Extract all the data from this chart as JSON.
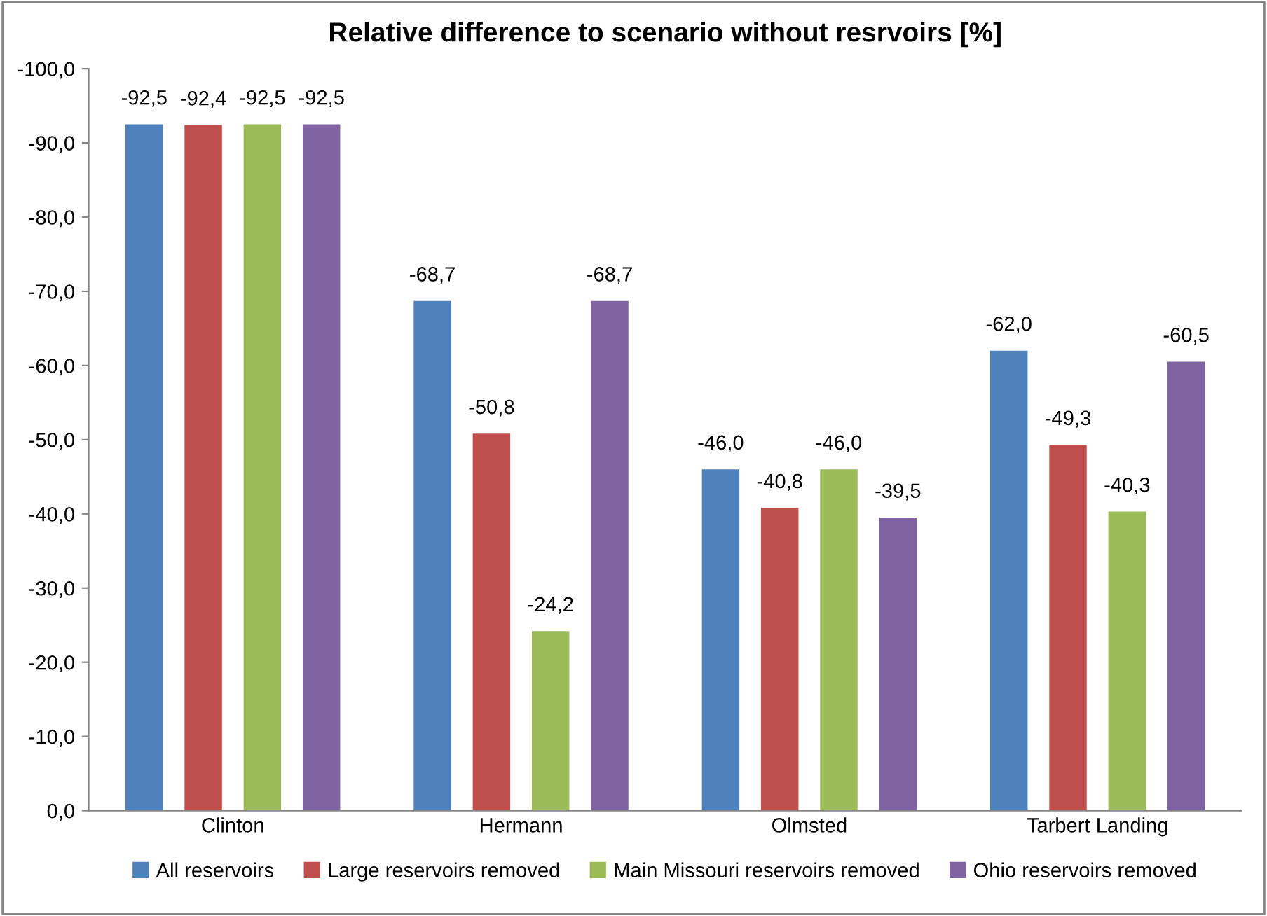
{
  "chart_data": {
    "type": "bar",
    "title": "Relative difference to scenario without resrvoirs [%]",
    "categories": [
      "Clinton",
      "Hermann",
      "Olmsted",
      "Tarbert Landing"
    ],
    "series": [
      {
        "name": "All reservoirs",
        "color": "#4f81bd",
        "values": [
          -92.5,
          -68.7,
          -46.0,
          -62.0
        ],
        "value_labels": [
          "-92,5",
          "-68,7",
          "-46,0",
          "-62,0"
        ]
      },
      {
        "name": "Large reservoirs removed",
        "color": "#c0504d",
        "values": [
          -92.4,
          -50.8,
          -40.8,
          -49.3
        ],
        "value_labels": [
          "-92,4",
          "-50,8",
          "-40,8",
          "-49,3"
        ]
      },
      {
        "name": "Main Missouri reservoirs removed",
        "color": "#9bbb59",
        "values": [
          -92.5,
          -24.2,
          -46.0,
          -40.3
        ],
        "value_labels": [
          "-92,5",
          "-24,2",
          "-46,0",
          "-40,3"
        ]
      },
      {
        "name": "Ohio reservoirs removed",
        "color": "#8064a2",
        "values": [
          -92.5,
          -68.7,
          -39.5,
          -60.5
        ],
        "value_labels": [
          "-92,5",
          "-68,7",
          "-39,5",
          "-60,5"
        ]
      }
    ],
    "ylim": [
      0,
      -100
    ],
    "yticks": [
      {
        "value": -100,
        "label": "-100,0"
      },
      {
        "value": -90,
        "label": "-90,0"
      },
      {
        "value": -80,
        "label": "-80,0"
      },
      {
        "value": -70,
        "label": "-70,0"
      },
      {
        "value": -60,
        "label": "-60,0"
      },
      {
        "value": -50,
        "label": "-50,0"
      },
      {
        "value": -40,
        "label": "-40,0"
      },
      {
        "value": -30,
        "label": "-30,0"
      },
      {
        "value": -20,
        "label": "-20,0"
      },
      {
        "value": -10,
        "label": "-10,0"
      },
      {
        "value": 0,
        "label": "0,0"
      }
    ],
    "legend": "bottom"
  }
}
